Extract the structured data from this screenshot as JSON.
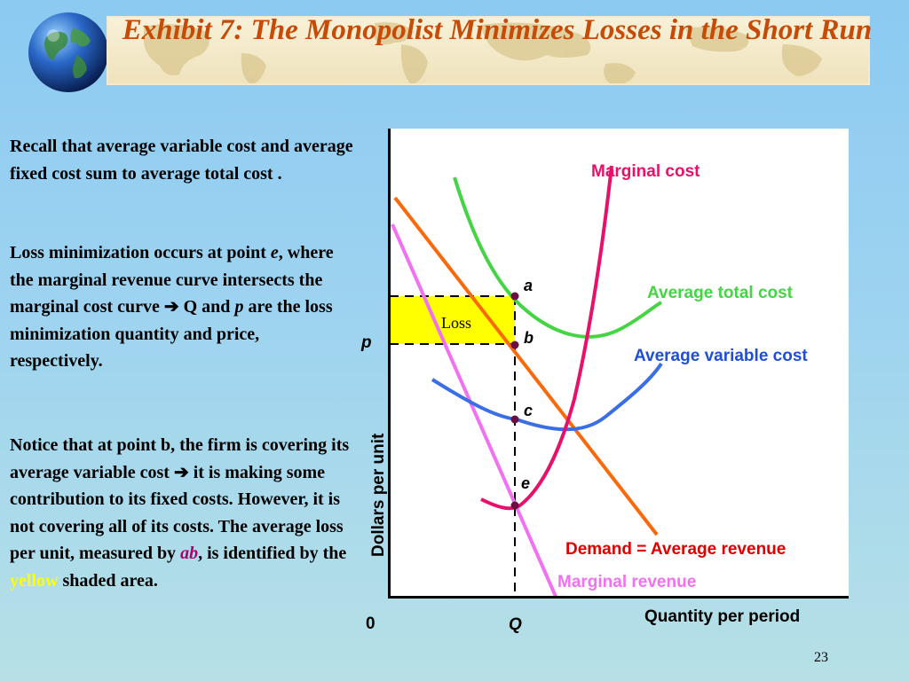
{
  "slide": {
    "title": "Exhibit 7: The Monopolist Minimizes Losses in the Short Run",
    "page_number": "23"
  },
  "text": {
    "para1": "Recall that average variable cost and average fixed cost sum to average total cost .",
    "para2": {
      "a": "Loss minimization occurs at point",
      "b": "e",
      "c": ", where the marginal revenue curve intersects the marginal cost curve",
      "arrow": "➔",
      "d": " Q and",
      "e": "p",
      "f": "are the loss minimization quantity and price, respectively."
    },
    "para3": {
      "a": "Notice that at point b, the firm is covering its average variable cost",
      "arrow": "➔",
      "b": " it is making some contribution to its fixed costs.  However, it is not covering all of its costs.  The average loss per unit, measured by",
      "ab": "ab",
      "c": ", is identified by the",
      "yellow": "yellow",
      "d": "shaded area."
    }
  },
  "diagram": {
    "x_axis_label": "Quantity per period",
    "y_axis_label": "Dollars per unit",
    "origin_label": "0",
    "q_label": "Q",
    "p_label": "p",
    "loss_label": "Loss",
    "points": [
      "a",
      "b",
      "c",
      "e"
    ],
    "curves": {
      "mc": "Marginal cost",
      "atc": "Average total cost",
      "avc": "Average variable cost",
      "demand": "Demand = Average revenue",
      "mr": "Marginal revenue"
    },
    "colors": {
      "mc": "#e8116a",
      "atc": "#45d443",
      "avc": "#3a6ee6",
      "demand": "#fb6a0a",
      "demand_label": "#e00000",
      "mr": "#f270f2",
      "loss_fill": "#ffff00",
      "point": "#6a1040",
      "title": "#c64b07"
    }
  }
}
